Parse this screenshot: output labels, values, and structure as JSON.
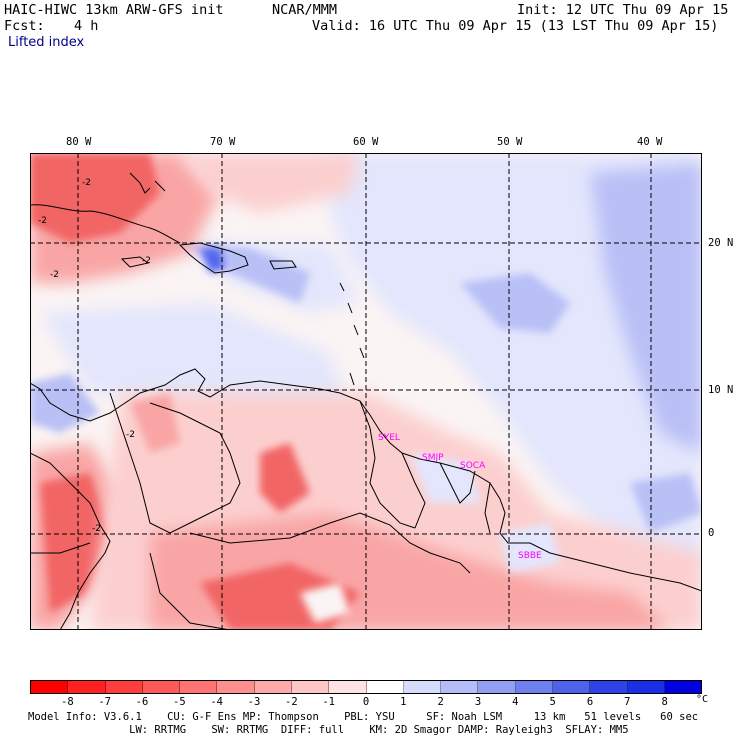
{
  "header": {
    "model_title": "HAIC-HIWC 13km ARW-GFS init",
    "org": "NCAR/MMM",
    "init": "Init: 12 UTC Thu 09 Apr 15",
    "fcst_label": "Fcst:",
    "fcst_value": "4 h",
    "valid": "Valid: 16 UTC Thu 09 Apr 15 (13 LST Thu 09 Apr 15)",
    "field": "Lifted index"
  },
  "map": {
    "lon_labels": [
      "80 W",
      "70 W",
      "60 W",
      "50 W",
      "40 W"
    ],
    "lat_labels": [
      "20 N",
      "10 N",
      "0"
    ],
    "contour_labels": [
      "-2",
      "-2",
      "-2",
      "-2",
      "-2",
      "-2"
    ],
    "stations": [
      "SYEL",
      "SMJP",
      "SOCA",
      "SBBE"
    ],
    "colors": {
      "neg_strong": "#f26565",
      "neg_mid": "#f9a5a5",
      "neg_light": "#fccfcf",
      "neutral": "#fbf4f4",
      "pos_light": "#e3e6fc",
      "pos_mid": "#b9c0f6",
      "pos_strong": "#5566ee",
      "station": "#ff00ff",
      "grid": "#000000",
      "coast": "#000000"
    }
  },
  "colorbar": {
    "ticks": [
      "-8",
      "-7",
      "-6",
      "-5",
      "-4",
      "-3",
      "-2",
      "-1",
      "0",
      "1",
      "2",
      "3",
      "4",
      "5",
      "6",
      "7",
      "8"
    ],
    "unit": "°C",
    "colors": [
      "#ff0000",
      "#ff2020",
      "#ff3d3d",
      "#ff5858",
      "#ff7373",
      "#ff8e8e",
      "#ffaaaa",
      "#ffc6c6",
      "#ffe2e2",
      "#ffffff",
      "#d6dcfb",
      "#b4bdf7",
      "#939ff4",
      "#7180f0",
      "#4f62ec",
      "#2d43e8",
      "#1b2fe6",
      "#0000e0"
    ]
  },
  "footer": {
    "line1": "Model Info: V3.6.1    CU: G-F Ens MP: Thompson    PBL: YSU     SF: Noah LSM     13 km   51 levels   60 sec",
    "line2": "                LW: RRTMG    SW: RRTMG  DIFF: full    KM: 2D Smagor DAMP: Rayleigh3  SFLAY: MM5"
  }
}
